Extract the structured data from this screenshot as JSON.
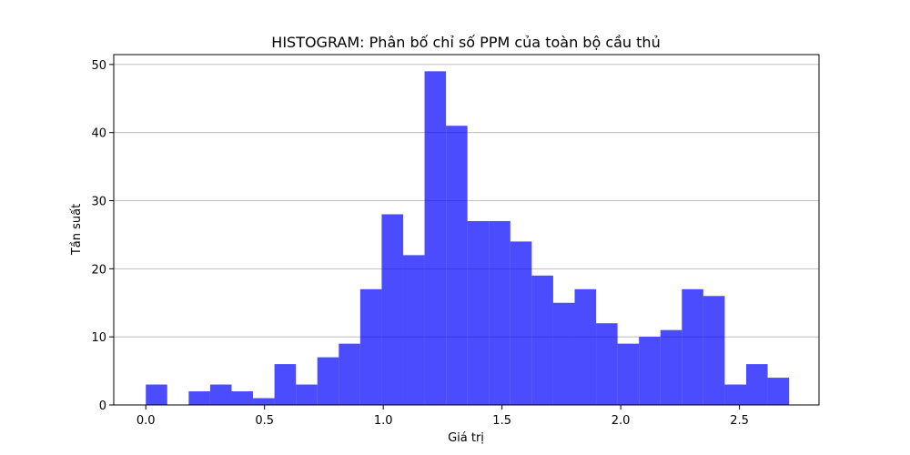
{
  "chart_data": {
    "type": "bar",
    "title": "HISTOGRAM: Phân bố chỉ số PPM của toàn bộ cầu thủ",
    "xlabel": "Giá trị",
    "ylabel": "Tần suất",
    "xlim": [
      -0.135,
      2.835
    ],
    "ylim": [
      0,
      51.45
    ],
    "grid": "y",
    "bin_edges": [
      0.0,
      0.0903,
      0.1806,
      0.2709,
      0.3612,
      0.4515,
      0.5418,
      0.6321,
      0.7224,
      0.8127,
      0.903,
      0.9933,
      1.0836,
      1.1739,
      1.2642,
      1.3545,
      1.4448,
      1.5351,
      1.6254,
      1.7157,
      1.806,
      1.8963,
      1.9866,
      2.0769,
      2.1672,
      2.2575,
      2.3478,
      2.4381,
      2.5284,
      2.6187,
      2.709
    ],
    "values": [
      3,
      0,
      2,
      3,
      2,
      1,
      6,
      3,
      7,
      9,
      17,
      28,
      22,
      49,
      41,
      27,
      27,
      24,
      19,
      15,
      17,
      12,
      9,
      10,
      11,
      17,
      16,
      3,
      6,
      4
    ],
    "x_ticks": [
      "0.0",
      "0.5",
      "1.0",
      "1.5",
      "2.0",
      "2.5"
    ],
    "x_tick_values": [
      0,
      0.5,
      1.0,
      1.5,
      2.0,
      2.5
    ],
    "y_ticks": [
      "0",
      "10",
      "20",
      "30",
      "40",
      "50"
    ],
    "y_tick_values": [
      0,
      10,
      20,
      30,
      40,
      50
    ],
    "bar_color": "#0000ff"
  }
}
